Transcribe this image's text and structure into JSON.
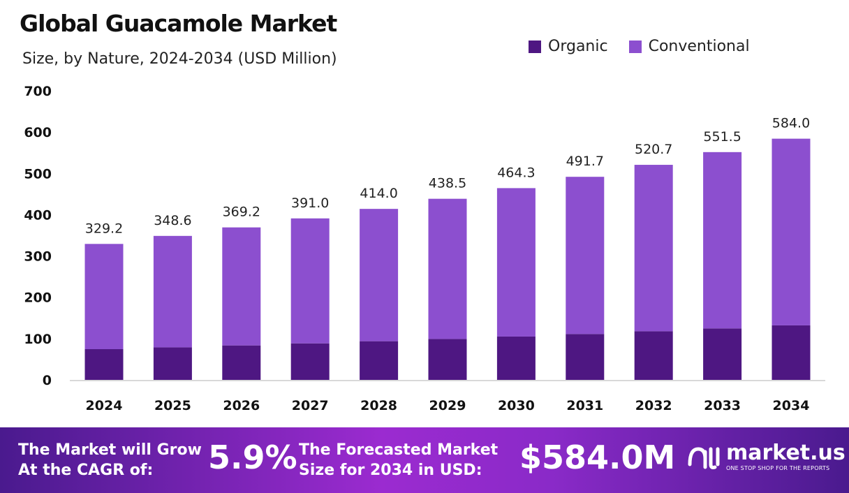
{
  "chart_data": {
    "type": "bar",
    "stacked": true,
    "title": "Global Guacamole Market",
    "subtitle": "Size, by Nature, 2024-2034 (USD Million)",
    "categories": [
      "2024",
      "2025",
      "2026",
      "2027",
      "2028",
      "2029",
      "2030",
      "2031",
      "2032",
      "2033",
      "2034"
    ],
    "series": [
      {
        "name": "Organic",
        "color": "#4e1782",
        "values": [
          74.4,
          78.8,
          83.4,
          88.4,
          93.6,
          99.1,
          104.9,
          111.1,
          117.7,
          124.6,
          132.0
        ]
      },
      {
        "name": "Conventional",
        "color": "#8c4fcf",
        "values": [
          254.8,
          269.8,
          285.8,
          302.6,
          320.4,
          339.4,
          359.4,
          380.6,
          403.0,
          426.9,
          452.0
        ]
      }
    ],
    "totals": [
      "329.2",
      "348.6",
      "369.2",
      "391.0",
      "414.0",
      "438.5",
      "464.3",
      "491.7",
      "520.7",
      "551.5",
      "584.0"
    ],
    "ylim": [
      0,
      700
    ],
    "yticks": [
      "0",
      "100",
      "200",
      "300",
      "400",
      "500",
      "600",
      "700"
    ],
    "grid": false,
    "legend": "top-right"
  },
  "banner": {
    "cagr_text_1": "The Market will Grow",
    "cagr_text_2": "At the CAGR of:",
    "cagr_value": "5.9%",
    "forecast_text_1": "The Forecasted Market",
    "forecast_text_2": "Size for 2034 in USD:",
    "forecast_value": "$584.0M",
    "logo_name": "market.us",
    "logo_tagline": "ONE STOP SHOP FOR THE REPORTS"
  }
}
